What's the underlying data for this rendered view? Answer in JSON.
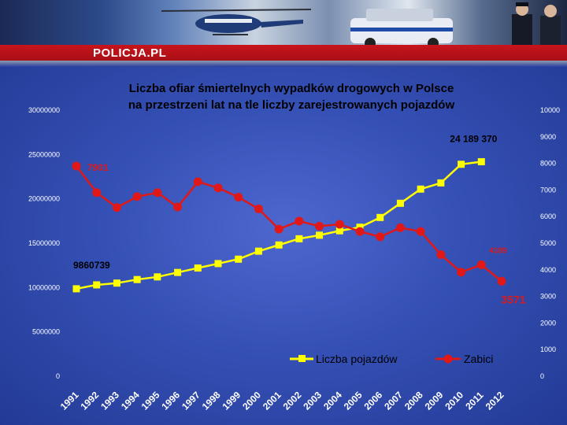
{
  "header": {
    "logo_text": "POLICJA.PL",
    "brand_color": "#c8141c"
  },
  "chart_data": {
    "type": "line",
    "title": "Liczba ofiar śmiertelnych wypadków drogowych w Polsce na przestrzeni lat na tle liczby zarejestrowanych pojazdów",
    "title_lines": [
      "Liczba ofiar śmiertelnych wypadków drogowych w Polsce",
      "na przestrzeni lat na tle liczby zarejestrowanych pojazdów"
    ],
    "categories": [
      "1991",
      "1992",
      "1993",
      "1994",
      "1995",
      "1996",
      "1997",
      "1998",
      "1999",
      "2000",
      "2001",
      "2002",
      "2003",
      "2004",
      "2005",
      "2006",
      "2007",
      "2008",
      "2009",
      "2010",
      "2011",
      "2012"
    ],
    "y_left": {
      "ylim": [
        0,
        30000000
      ],
      "ticks": [
        "0",
        "5000000",
        "10000000",
        "15000000",
        "20000000",
        "25000000",
        "30000000"
      ]
    },
    "y_right": {
      "ylim": [
        0,
        10000
      ],
      "ticks": [
        "0",
        "1000",
        "2000",
        "3000",
        "4000",
        "5000",
        "6000",
        "7000",
        "8000",
        "9000",
        "10000"
      ]
    },
    "series": [
      {
        "name": "Liczba pojazdów",
        "axis": "left",
        "color": "#ffff00",
        "values": [
          9860739,
          10300000,
          10500000,
          10900000,
          11200000,
          11700000,
          12200000,
          12700000,
          13200000,
          14100000,
          14800000,
          15500000,
          15900000,
          16400000,
          16800000,
          17900000,
          19500000,
          21100000,
          21800000,
          23900000,
          24189370,
          null
        ]
      },
      {
        "name": "Zabici",
        "axis": "right",
        "color": "#e01818",
        "values": [
          7901,
          6900,
          6340,
          6750,
          6900,
          6360,
          7310,
          7080,
          6730,
          6290,
          5530,
          5830,
          5640,
          5710,
          5440,
          5240,
          5580,
          5440,
          4570,
          3910,
          4189,
          3571
        ]
      }
    ],
    "annotations": [
      {
        "text": "7901",
        "series": "Zabici",
        "category": "1991"
      },
      {
        "text": "9860739",
        "series": "Liczba pojazdów",
        "category": "1991"
      },
      {
        "text": "24 189 370",
        "series": "Liczba pojazdów",
        "category": "2011"
      },
      {
        "text": "4189",
        "series": "Zabici",
        "category": "2011"
      },
      {
        "text": "3571",
        "series": "Zabici",
        "category": "2012"
      }
    ],
    "legend": {
      "position": "bottom",
      "entries": [
        "Liczba pojazdów",
        "Zabici"
      ]
    },
    "grid": false
  }
}
